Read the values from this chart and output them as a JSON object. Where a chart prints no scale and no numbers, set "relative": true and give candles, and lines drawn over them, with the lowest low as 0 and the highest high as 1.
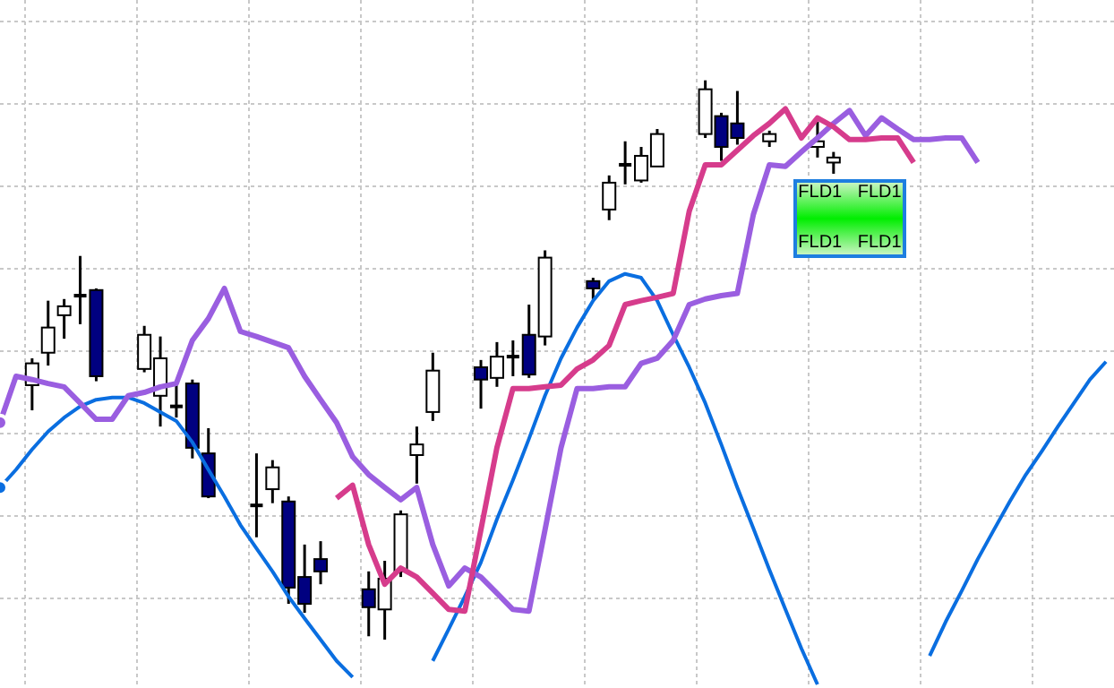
{
  "chart_data": {
    "type": "candlestick",
    "relative": true,
    "grid": true,
    "categories": [
      null,
      null,
      null,
      null,
      null,
      null,
      null,
      null,
      null,
      null,
      null,
      null,
      null,
      null,
      null,
      null,
      null,
      null,
      null,
      null,
      null,
      null,
      null,
      null,
      null,
      null,
      null,
      null,
      null,
      null,
      null,
      null,
      null,
      null,
      null,
      null,
      null,
      null,
      null,
      null,
      null,
      null,
      null,
      null,
      null,
      null,
      null,
      null,
      null,
      null,
      null,
      null,
      null,
      null,
      null,
      null,
      null,
      null,
      null,
      null,
      null,
      null,
      null,
      null,
      null,
      null,
      null,
      null,
      null,
      null
    ],
    "ohlc": [
      null,
      null,
      [
        0.455,
        0.503,
        0.41,
        0.494
      ],
      [
        0.513,
        0.606,
        0.49,
        0.558
      ],
      [
        0.58,
        0.609,
        0.538,
        0.596
      ],
      [
        0.615,
        0.686,
        0.564,
        0.615
      ],
      [
        0.625,
        0.628,
        0.462,
        0.471
      ],
      null,
      null,
      [
        0.484,
        0.561,
        0.478,
        0.545
      ],
      [
        0.436,
        0.542,
        0.381,
        0.503
      ],
      [
        0.417,
        0.462,
        0.397,
        0.417
      ],
      [
        0.458,
        0.465,
        0.324,
        0.343
      ],
      [
        0.333,
        0.378,
        0.253,
        0.256
      ],
      null,
      null,
      [
        0.24,
        0.333,
        0.183,
        0.24
      ],
      [
        0.269,
        0.321,
        0.244,
        0.308
      ],
      [
        0.247,
        0.256,
        0.064,
        0.093
      ],
      [
        0.112,
        0.17,
        0.048,
        0.064
      ],
      [
        0.144,
        0.176,
        0.099,
        0.122
      ],
      null,
      null,
      [
        0.09,
        0.122,
        0.006,
        0.058
      ],
      [
        0.054,
        0.141,
        0,
        0.109
      ],
      [
        0.122,
        0.231,
        0.112,
        0.224
      ],
      [
        0.33,
        0.381,
        0.279,
        0.349
      ],
      [
        0.407,
        0.513,
        0.391,
        0.481
      ],
      null,
      null,
      [
        0.487,
        0.5,
        0.413,
        0.465
      ],
      [
        0.468,
        0.532,
        0.452,
        0.506
      ],
      [
        0.506,
        0.535,
        0.471,
        0.506
      ],
      [
        0.545,
        0.599,
        0.468,
        0.474
      ],
      [
        0.542,
        0.696,
        0.526,
        0.683
      ],
      null,
      null,
      [
        0.641,
        0.647,
        0.609,
        0.628
      ],
      [
        0.769,
        0.83,
        0.75,
        0.817
      ],
      [
        0.849,
        0.891,
        0.814,
        0.849
      ],
      [
        0.821,
        0.881,
        0.817,
        0.865
      ],
      [
        0.846,
        0.913,
        0.846,
        0.904
      ],
      null,
      null,
      [
        0.904,
        1,
        0.897,
        0.984
      ],
      [
        0.936,
        0.942,
        0.856,
        0.881
      ],
      [
        0.923,
        0.981,
        0.885,
        0.897
      ],
      null,
      [
        0.891,
        0.91,
        0.881,
        0.904
      ],
      null,
      null,
      [
        0.881,
        0.926,
        0.862,
        0.891
      ],
      [
        0.853,
        0.872,
        0.833,
        0.862
      ],
      null,
      null,
      null,
      null,
      null,
      null,
      null,
      null,
      null,
      null,
      null,
      null,
      null,
      null,
      null,
      null,
      null
    ],
    "colors": [
      null,
      null,
      "#ffffff",
      "#ffffff",
      "#ffffff",
      "#000000",
      "#000080",
      null,
      null,
      "#ffffff",
      "#ffffff",
      "#000000",
      "#000080",
      "#000080",
      null,
      null,
      "#000000",
      "#ffffff",
      "#000080",
      "#000080",
      "#000080",
      null,
      null,
      "#000080",
      "#ffffff",
      "#ffffff",
      "#ffffff",
      "#ffffff",
      null,
      null,
      "#000080",
      "#ffffff",
      "#000000",
      "#000080",
      "#ffffff",
      null,
      null,
      "#000080",
      "#ffffff",
      "#000000",
      "#ffffff",
      "#ffffff",
      null,
      null,
      "#ffffff",
      "#000080",
      "#000080",
      null,
      "#ffffff",
      null,
      null,
      "#ffffff",
      "#ffffff",
      null,
      null,
      null,
      null,
      null,
      null,
      null,
      null,
      null,
      null,
      null,
      null,
      null,
      null,
      null,
      null,
      null
    ],
    "series": [
      {
        "type": "line",
        "color": "#0a6ee0",
        "values": [
          0.272,
          0.304,
          0.34,
          0.372,
          0.397,
          0.417,
          0.429,
          0.433,
          0.433,
          0.423,
          0.407,
          0.391,
          0.353,
          0.304,
          0.256,
          0.205,
          0.163,
          0.122,
          0.077,
          0.038,
          0,
          -0.038,
          -0.067,
          null,
          null,
          null,
          null,
          -0.038,
          0.019,
          0.077,
          0.138,
          0.215,
          0.285,
          0.359,
          0.436,
          0.503,
          0.558,
          0.606,
          0.641,
          0.654,
          0.647,
          0.606,
          0.545,
          0.487,
          0.423,
          0.349,
          0.272,
          0.199,
          0.125,
          0.054,
          -0.016,
          -0.08,
          null,
          null,
          null,
          null,
          null,
          null,
          -0.029,
          0.032,
          0.087,
          0.144,
          0.196,
          0.247,
          0.295,
          0.337,
          0.381,
          0.423,
          0.465,
          0.497
        ]
      },
      {
        "type": "line",
        "color": "#9a5ee0",
        "values": [
          0.388,
          0.471,
          0.465,
          0.458,
          0.452,
          0.423,
          0.394,
          0.394,
          0.436,
          0.442,
          0.452,
          0.458,
          0.535,
          0.574,
          0.628,
          0.551,
          0.542,
          0.532,
          0.522,
          0.471,
          0.429,
          0.388,
          0.327,
          0.295,
          0.272,
          0.25,
          0.272,
          0.17,
          0.096,
          0.128,
          0.112,
          0.083,
          0.054,
          0.051,
          0.196,
          0.343,
          0.449,
          0.449,
          0.452,
          0.452,
          0.494,
          0.503,
          0.535,
          0.599,
          0.609,
          0.615,
          0.619,
          0.76,
          0.849,
          0.846,
          0.872,
          0.897,
          0.923,
          0.946,
          0.901,
          0.933,
          0.913,
          0.894,
          0.894,
          0.897,
          0.897,
          0.853,
          null,
          null,
          null,
          null,
          null,
          null,
          null,
          null
        ]
      },
      {
        "type": "line",
        "color": "#d63c8c",
        "values": [
          null,
          null,
          null,
          null,
          null,
          null,
          null,
          null,
          null,
          null,
          null,
          null,
          null,
          null,
          null,
          null,
          null,
          null,
          null,
          null,
          null,
          0.253,
          0.276,
          0.17,
          0.099,
          0.128,
          0.112,
          0.083,
          0.054,
          0.051,
          0.196,
          0.343,
          0.449,
          0.449,
          0.452,
          0.455,
          0.484,
          0.5,
          0.526,
          0.599,
          0.606,
          0.612,
          0.619,
          0.766,
          0.849,
          0.849,
          0.875,
          0.901,
          0.923,
          0.949,
          0.897,
          0.933,
          0.917,
          0.894,
          0.894,
          0.897,
          0.897,
          0.853,
          null,
          null,
          null,
          null,
          null,
          null,
          null,
          null,
          null,
          null,
          null,
          null
        ]
      }
    ],
    "annotations": [
      "FLD1 FLD1",
      "FLD1 FLD1"
    ]
  }
}
